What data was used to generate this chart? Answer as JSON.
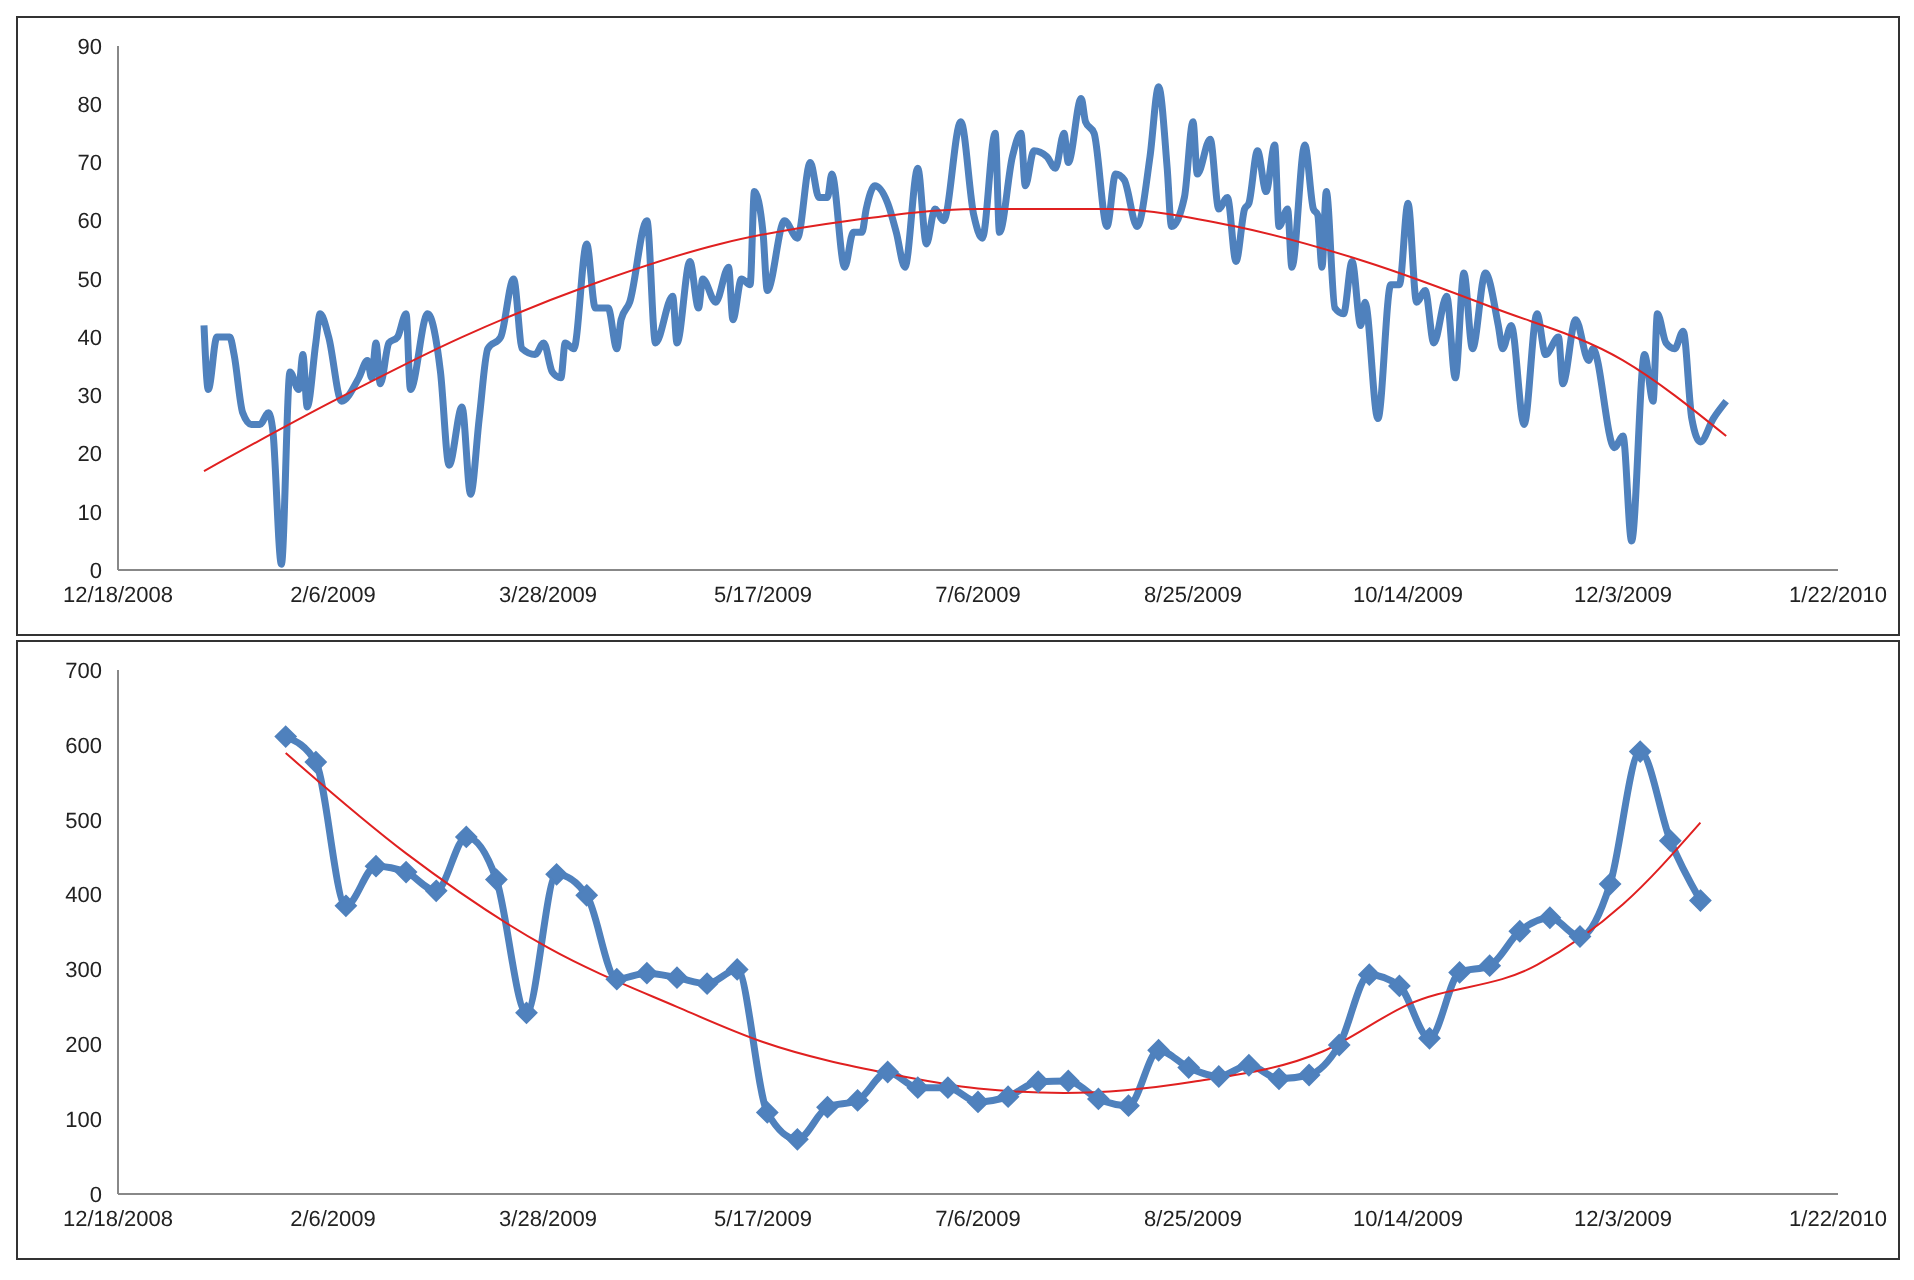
{
  "chart_data": [
    {
      "type": "line",
      "xlim": [
        "2008-12-18",
        "2010-01-22"
      ],
      "xticks": [
        {
          "value": "2008-12-18",
          "label": "12/18/2008"
        },
        {
          "value": "2009-02-06",
          "label": "2/6/2009"
        },
        {
          "value": "2009-03-28",
          "label": "3/28/2009"
        },
        {
          "value": "2009-05-17",
          "label": "5/17/2009"
        },
        {
          "value": "2009-07-06",
          "label": "7/6/2009"
        },
        {
          "value": "2009-08-25",
          "label": "8/25/2009"
        },
        {
          "value": "2009-10-14",
          "label": "10/14/2009"
        },
        {
          "value": "2009-12-03",
          "label": "12/3/2009"
        },
        {
          "value": "2010-01-22",
          "label": "1/22/2010"
        }
      ],
      "ylim": [
        0,
        90
      ],
      "yticks": [
        0,
        10,
        20,
        30,
        40,
        50,
        60,
        70,
        80,
        90
      ],
      "grid": false,
      "series": [
        {
          "color": "#4f81bd",
          "marker": "none",
          "x": [
            "2009-01-07",
            "2009-01-08",
            "2009-01-10",
            "2009-01-13",
            "2009-01-14",
            "2009-01-16",
            "2009-01-18",
            "2009-01-20",
            "2009-01-22",
            "2009-01-23",
            "2009-01-25",
            "2009-01-27",
            "2009-01-29",
            "2009-01-30",
            "2009-01-31",
            "2009-02-02",
            "2009-02-03",
            "2009-02-05",
            "2009-02-08",
            "2009-02-12",
            "2009-02-14",
            "2009-02-15",
            "2009-02-16",
            "2009-02-17",
            "2009-02-19",
            "2009-02-21",
            "2009-02-23",
            "2009-02-24",
            "2009-02-28",
            "2009-03-03",
            "2009-03-05",
            "2009-03-08",
            "2009-03-10",
            "2009-03-12",
            "2009-03-14",
            "2009-03-17",
            "2009-03-20",
            "2009-03-22",
            "2009-03-25",
            "2009-03-27",
            "2009-03-29",
            "2009-03-31",
            "2009-04-01",
            "2009-04-03",
            "2009-04-06",
            "2009-04-08",
            "2009-04-11",
            "2009-04-13",
            "2009-04-14",
            "2009-04-16",
            "2009-04-20",
            "2009-04-22",
            "2009-04-26",
            "2009-04-27",
            "2009-04-30",
            "2009-05-02",
            "2009-05-03",
            "2009-05-06",
            "2009-05-09",
            "2009-05-10",
            "2009-05-12",
            "2009-05-14",
            "2009-05-15",
            "2009-05-17",
            "2009-05-18",
            "2009-05-22",
            "2009-05-25",
            "2009-05-28",
            "2009-05-30",
            "2009-06-01",
            "2009-06-02",
            "2009-06-05",
            "2009-06-07",
            "2009-06-09",
            "2009-06-10",
            "2009-06-12",
            "2009-06-15",
            "2009-06-17",
            "2009-06-19",
            "2009-06-22",
            "2009-06-24",
            "2009-06-26",
            "2009-06-28",
            "2009-07-02",
            "2009-07-05",
            "2009-07-07",
            "2009-07-10",
            "2009-07-11",
            "2009-07-14",
            "2009-07-16",
            "2009-07-17",
            "2009-07-19",
            "2009-07-22",
            "2009-07-24",
            "2009-07-26",
            "2009-07-27",
            "2009-07-30",
            "2009-07-31",
            "2009-08-02",
            "2009-08-05",
            "2009-08-07",
            "2009-08-09",
            "2009-08-12",
            "2009-08-15",
            "2009-08-17",
            "2009-08-19",
            "2009-08-20",
            "2009-08-23",
            "2009-08-25",
            "2009-08-26",
            "2009-08-29",
            "2009-08-31",
            "2009-09-02",
            "2009-09-04",
            "2009-09-06",
            "2009-09-07",
            "2009-09-09",
            "2009-09-11",
            "2009-09-13",
            "2009-09-14",
            "2009-09-16",
            "2009-09-17",
            "2009-09-20",
            "2009-09-22",
            "2009-09-23",
            "2009-09-24",
            "2009-09-25",
            "2009-09-27",
            "2009-09-29",
            "2009-10-01",
            "2009-10-03",
            "2009-10-04",
            "2009-10-07",
            "2009-10-10",
            "2009-10-12",
            "2009-10-14",
            "2009-10-16",
            "2009-10-18",
            "2009-10-20",
            "2009-10-23",
            "2009-10-25",
            "2009-10-27",
            "2009-10-29",
            "2009-11-01",
            "2009-11-04",
            "2009-11-05",
            "2009-11-07",
            "2009-11-10",
            "2009-11-13",
            "2009-11-15",
            "2009-11-18",
            "2009-11-19",
            "2009-11-22",
            "2009-11-25",
            "2009-11-26",
            "2009-12-01",
            "2009-12-03",
            "2009-12-05",
            "2009-12-08",
            "2009-12-10",
            "2009-12-11",
            "2009-12-13",
            "2009-12-15",
            "2009-12-17",
            "2009-12-19",
            "2009-12-21",
            "2009-12-24",
            "2009-12-27"
          ],
          "values": [
            42,
            31,
            40,
            40,
            37,
            27,
            25,
            25,
            27,
            24,
            1,
            34,
            31,
            37,
            28,
            39,
            44,
            40,
            29,
            33,
            36,
            33,
            39,
            32,
            39,
            40,
            44,
            31,
            44,
            34,
            18,
            28,
            13,
            26,
            38,
            40,
            50,
            38,
            37,
            39,
            34,
            33,
            39,
            38,
            56,
            45,
            45,
            38,
            43,
            46,
            60,
            39,
            47,
            39,
            53,
            45,
            50,
            46,
            52,
            43,
            50,
            49,
            65,
            58,
            48,
            60,
            57,
            70,
            64,
            64,
            68,
            52,
            58,
            58,
            62,
            66,
            63,
            58,
            52,
            69,
            56,
            62,
            60,
            77,
            61,
            57,
            75,
            58,
            71,
            75,
            66,
            72,
            71,
            69,
            75,
            70,
            81,
            77,
            75,
            59,
            68,
            67,
            59,
            71,
            83,
            69,
            59,
            64,
            77,
            68,
            74,
            62,
            64,
            53,
            62,
            63,
            72,
            65,
            73,
            59,
            62,
            52,
            73,
            62,
            61,
            52,
            65,
            45,
            44,
            53,
            42,
            46,
            26,
            49,
            49,
            63,
            46,
            48,
            39,
            47,
            33,
            51,
            38,
            51,
            42,
            38,
            42,
            25,
            44,
            37,
            40,
            32,
            43,
            36,
            38,
            21,
            23,
            5,
            37,
            29,
            44,
            39,
            38,
            41,
            26,
            22,
            26,
            29
          ]
        },
        {
          "color": "#e02020",
          "marker": "none",
          "x": [
            "2009-01-07",
            "2009-02-06",
            "2009-03-08",
            "2009-04-07",
            "2009-05-07",
            "2009-06-06",
            "2009-07-06",
            "2009-08-05",
            "2009-09-04",
            "2009-10-04",
            "2009-11-03",
            "2009-12-03",
            "2009-12-27"
          ],
          "values": [
            17,
            29,
            40,
            49,
            56,
            60,
            62,
            62,
            59,
            53,
            45,
            36,
            23
          ]
        }
      ]
    },
    {
      "type": "line",
      "xlim": [
        "2008-12-18",
        "2010-01-22"
      ],
      "xticks": [
        {
          "value": "2008-12-18",
          "label": "12/18/2008"
        },
        {
          "value": "2009-02-06",
          "label": "2/6/2009"
        },
        {
          "value": "2009-03-28",
          "label": "3/28/2009"
        },
        {
          "value": "2009-05-17",
          "label": "5/17/2009"
        },
        {
          "value": "2009-07-06",
          "label": "7/6/2009"
        },
        {
          "value": "2009-08-25",
          "label": "8/25/2009"
        },
        {
          "value": "2009-10-14",
          "label": "10/14/2009"
        },
        {
          "value": "2009-12-03",
          "label": "12/3/2009"
        },
        {
          "value": "2010-01-22",
          "label": "1/22/2010"
        }
      ],
      "ylim": [
        0,
        700
      ],
      "yticks": [
        0,
        100,
        200,
        300,
        400,
        500,
        600,
        700
      ],
      "grid": false,
      "series": [
        {
          "color": "#4f81bd",
          "marker": "diamond",
          "x": [
            "2009-01-26",
            "2009-02-02",
            "2009-02-09",
            "2009-02-16",
            "2009-02-23",
            "2009-03-02",
            "2009-03-09",
            "2009-03-16",
            "2009-03-23",
            "2009-03-30",
            "2009-04-06",
            "2009-04-13",
            "2009-04-20",
            "2009-04-27",
            "2009-05-04",
            "2009-05-11",
            "2009-05-18",
            "2009-05-25",
            "2009-06-01",
            "2009-06-08",
            "2009-06-15",
            "2009-06-22",
            "2009-06-29",
            "2009-07-06",
            "2009-07-13",
            "2009-07-20",
            "2009-07-27",
            "2009-08-03",
            "2009-08-10",
            "2009-08-17",
            "2009-08-24",
            "2009-08-31",
            "2009-09-07",
            "2009-09-14",
            "2009-09-21",
            "2009-09-28",
            "2009-10-05",
            "2009-10-12",
            "2009-10-19",
            "2009-10-26",
            "2009-11-02",
            "2009-11-09",
            "2009-11-16",
            "2009-11-23",
            "2009-11-30",
            "2009-12-07",
            "2009-12-14",
            "2009-12-21"
          ],
          "values": [
            611,
            577,
            385,
            438,
            430,
            405,
            477,
            420,
            242,
            427,
            399,
            287,
            295,
            289,
            281,
            300,
            109,
            73,
            116,
            125,
            163,
            142,
            142,
            123,
            130,
            150,
            151,
            127,
            118,
            192,
            169,
            157,
            172,
            154,
            159,
            199,
            293,
            278,
            208,
            296,
            305,
            351,
            369,
            344,
            414,
            591,
            472,
            392
          ]
        },
        {
          "color": "#e02020",
          "marker": "none",
          "x": [
            "2009-01-26",
            "2009-02-23",
            "2009-03-28",
            "2009-04-27",
            "2009-05-17",
            "2009-06-16",
            "2009-07-06",
            "2009-07-26",
            "2009-08-25",
            "2009-09-24",
            "2009-10-14",
            "2009-11-13",
            "2009-12-03",
            "2009-12-21"
          ],
          "values": [
            589,
            455,
            329,
            250,
            203,
            160,
            141,
            135,
            150,
            190,
            253,
            306,
            387,
            496
          ]
        }
      ]
    }
  ]
}
